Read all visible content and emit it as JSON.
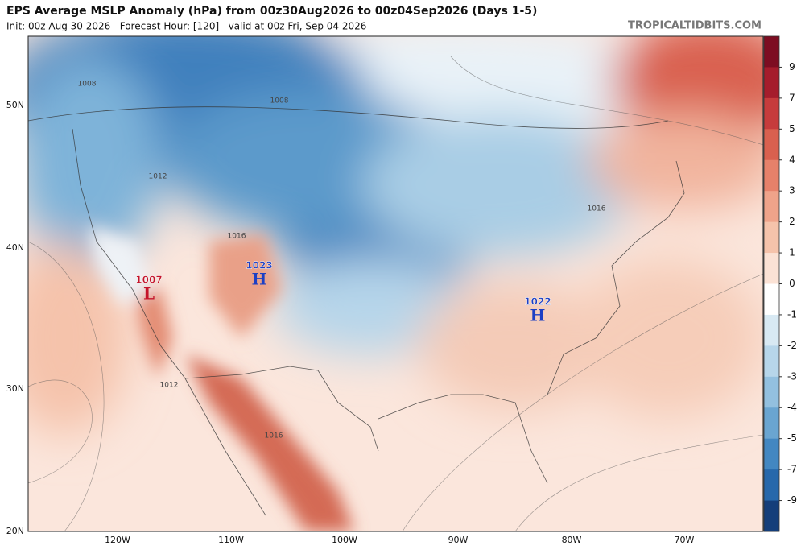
{
  "header": {
    "title": "EPS Average MSLP Anomaly (hPa) from 00z30Aug2026 to 00z04Sep2026 (Days 1-5)",
    "subtitle": "Init: 00z Aug 30 2026   Forecast Hour: [120]   valid at 00z Fri, Sep 04 2026",
    "watermark": "TROPICALTIDBITS.COM"
  },
  "colorbar": {
    "labels": [
      "9",
      "7",
      "5",
      "4",
      "3",
      "2",
      "1",
      "0",
      "-1",
      "-2",
      "-3",
      "-4",
      "-5",
      "-7",
      "-9"
    ],
    "colors": [
      "#7d0d22",
      "#a51c2c",
      "#c63b3c",
      "#d9604f",
      "#e6816a",
      "#efa38a",
      "#f5c3ab",
      "#fbe2d5",
      "#ffffff",
      "#d8e9f3",
      "#b7d6ea",
      "#93c0df",
      "#6aa5d1",
      "#4387c1",
      "#2768ab",
      "#143e7a"
    ]
  },
  "lat_labels": [
    "50N",
    "40N",
    "30N",
    "20N"
  ],
  "lon_labels": [
    "120W",
    "110W",
    "100W",
    "90W",
    "80W",
    "70W"
  ],
  "centers": [
    {
      "pressure": "1007",
      "symbol": "L"
    },
    {
      "pressure": "1023",
      "symbol": "H"
    },
    {
      "pressure": "1022",
      "symbol": "H"
    }
  ],
  "contour_labels": [
    "1008",
    "1008",
    "1012",
    "1016",
    "1016",
    "1012",
    "1016"
  ]
}
